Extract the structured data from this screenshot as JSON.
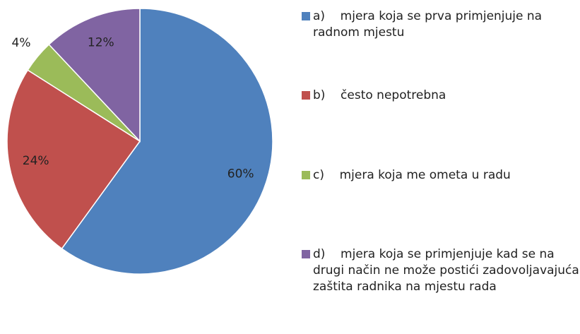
{
  "chart_data": {
    "type": "pie",
    "categories": [
      "a)    mjera koja se prva primjenjuje na radnom mjestu",
      "b)    često nepotrebna",
      "c)    mjera koja me ometa u radu",
      "d)    mjera koja se primjenjuje kad se na drugi način ne može postići zadovoljavajuća zaštita radnika na mjestu rada"
    ],
    "values": [
      60,
      24,
      4,
      12
    ],
    "value_labels": [
      "60%",
      "24%",
      "4%",
      "12%"
    ],
    "colors": [
      "#4f81bd",
      "#c0504d",
      "#9bbb59",
      "#8064a2"
    ],
    "legend": "right"
  }
}
